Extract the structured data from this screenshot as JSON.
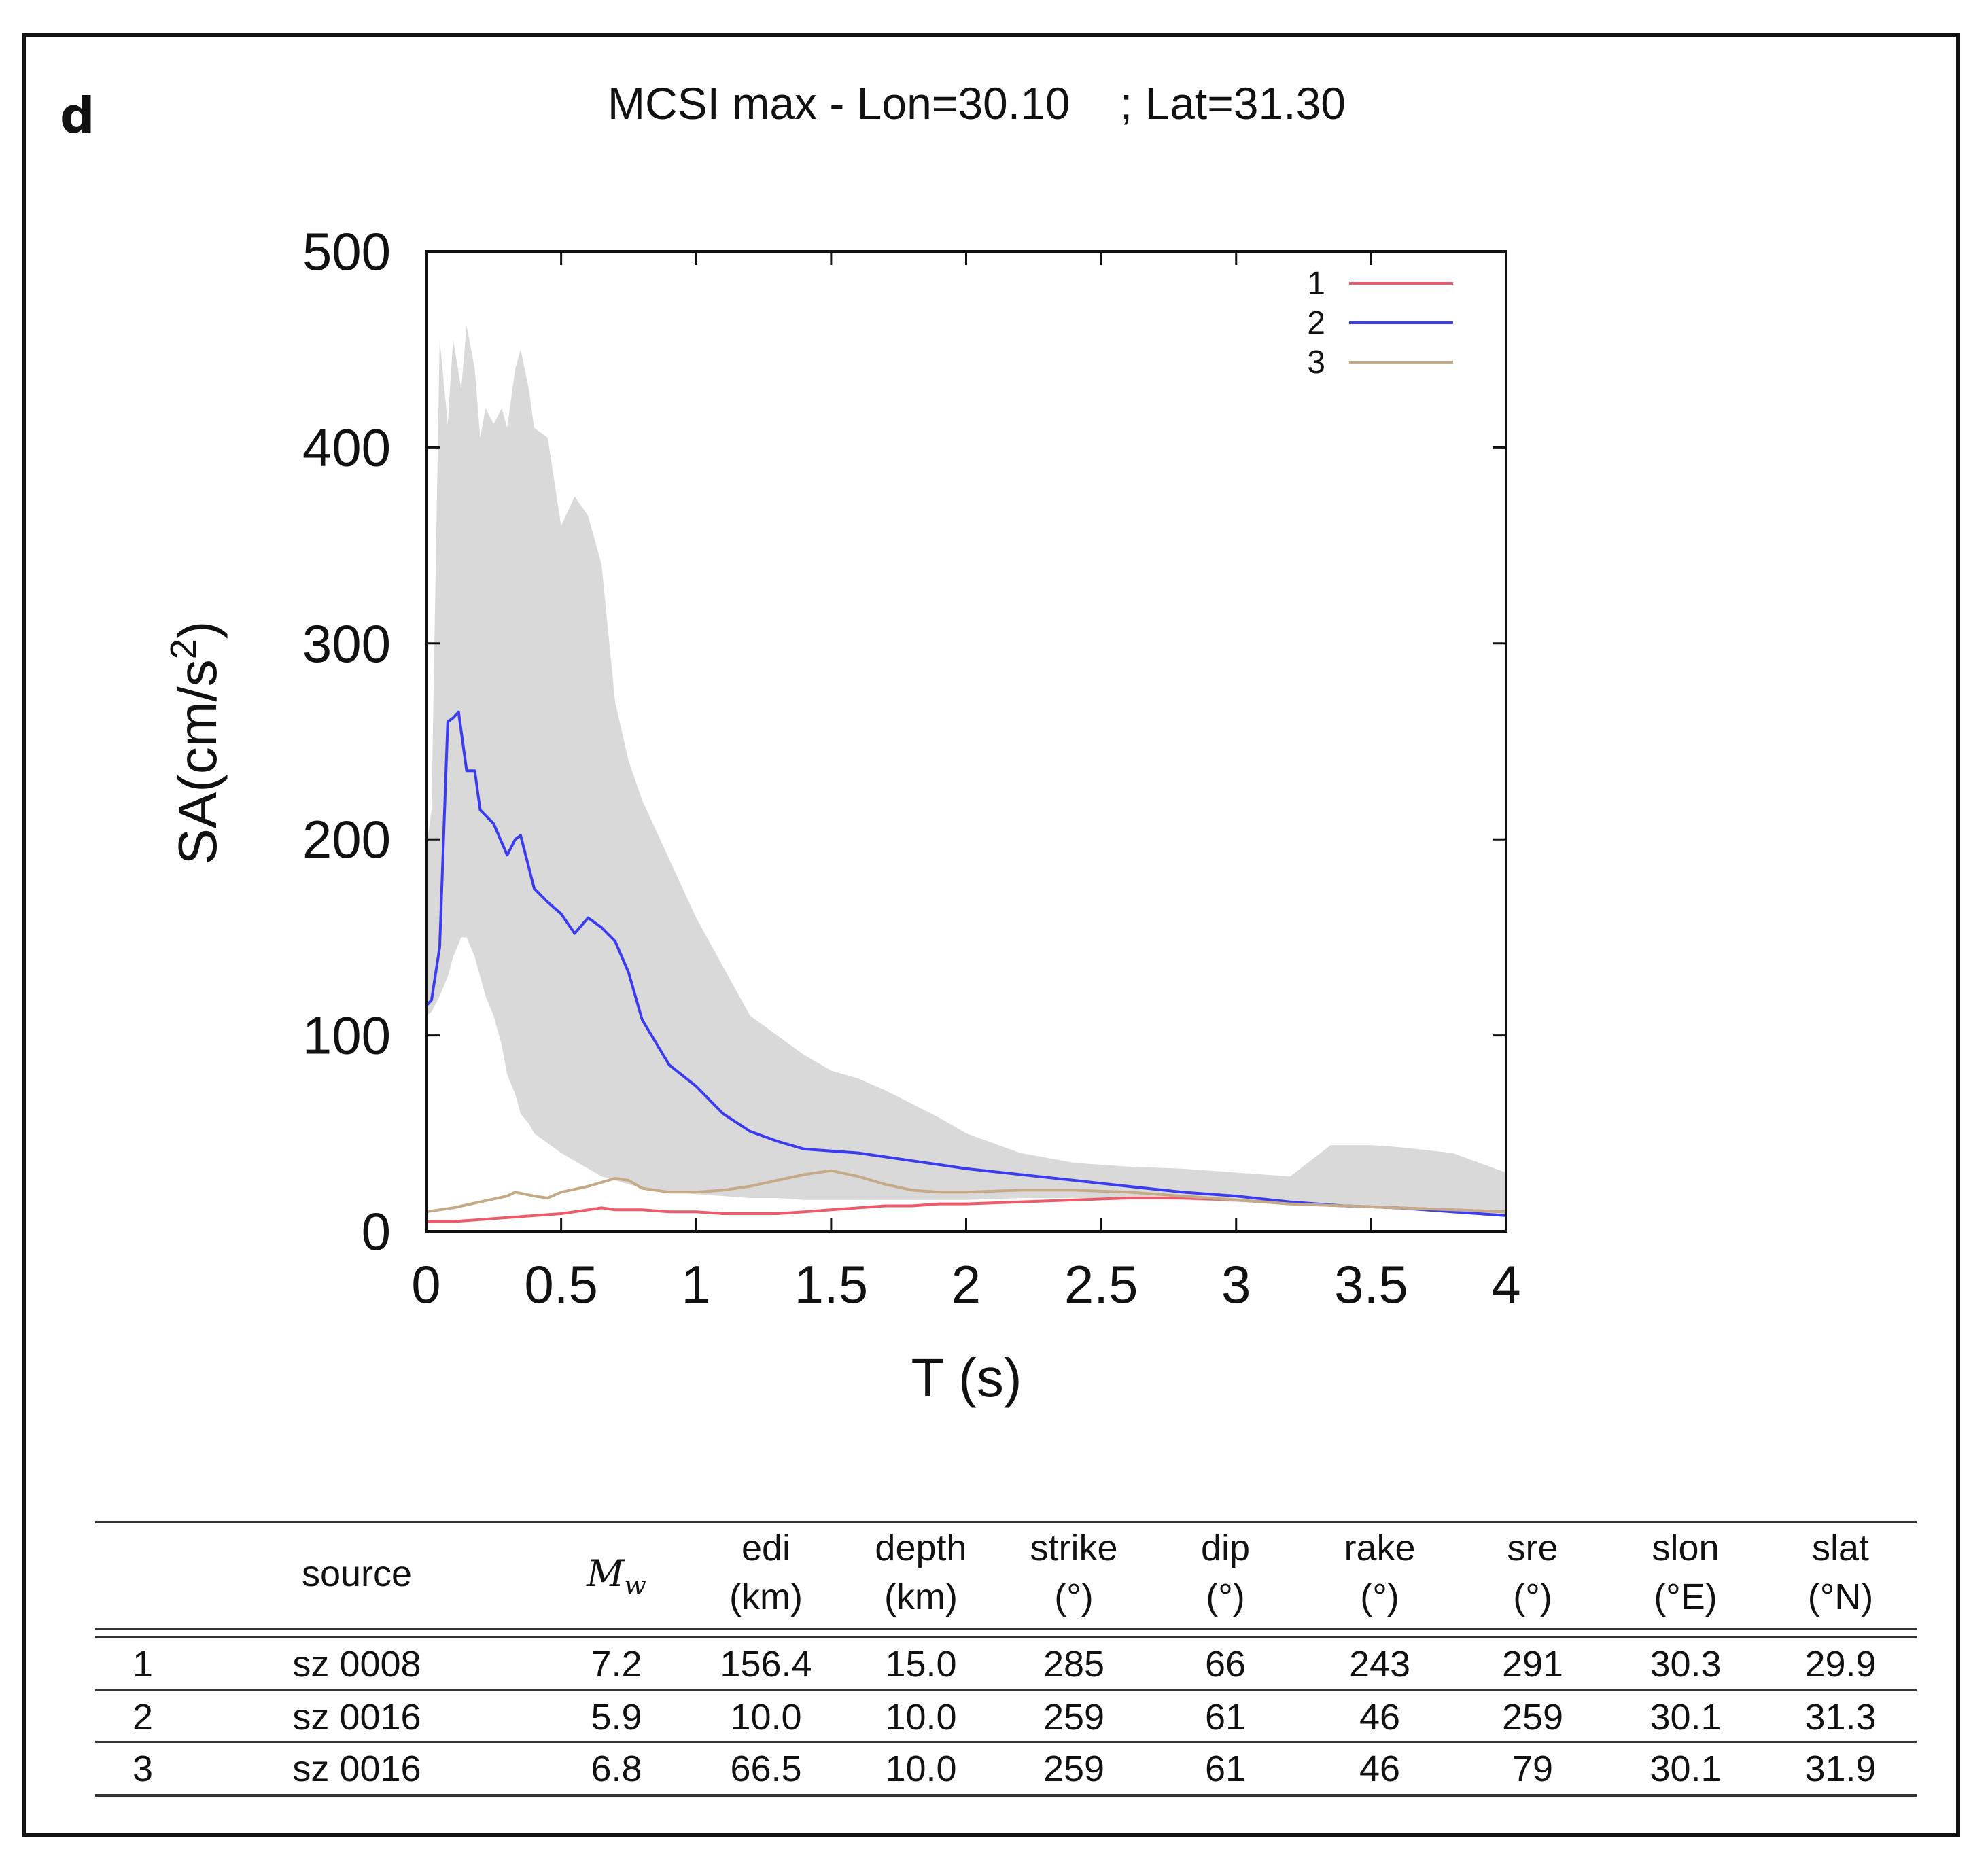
{
  "panel_letter": "d",
  "chart_data": {
    "type": "line",
    "title": "MCSI max - Lon=30.10    ; Lat=31.30",
    "xlabel": "T (s)",
    "ylabel": "SA(cm/s",
    "ylabel_sup": "2",
    "ylabel_close": ")",
    "xlim": [
      0,
      4
    ],
    "ylim": [
      0,
      500
    ],
    "xticks": [
      0,
      0.5,
      1,
      1.5,
      2,
      2.5,
      3,
      3.5,
      4
    ],
    "xtick_labels": [
      "0",
      "0.5",
      "1",
      "1.5",
      "2",
      "2.5",
      "3",
      "3.5",
      "4"
    ],
    "yticks": [
      0,
      100,
      200,
      300,
      400,
      500
    ],
    "ytick_labels": [
      "0",
      "100",
      "200",
      "300",
      "400",
      "500"
    ],
    "legend_position": "top-right",
    "envelope": {
      "name": "range",
      "color": "#d9d9d9",
      "x": [
        0,
        0.02,
        0.05,
        0.08,
        0.1,
        0.13,
        0.15,
        0.18,
        0.2,
        0.22,
        0.25,
        0.28,
        0.3,
        0.33,
        0.35,
        0.38,
        0.4,
        0.45,
        0.5,
        0.55,
        0.6,
        0.65,
        0.7,
        0.75,
        0.8,
        0.9,
        1.0,
        1.1,
        1.2,
        1.3,
        1.4,
        1.5,
        1.6,
        1.7,
        1.8,
        1.9,
        2.0,
        2.2,
        2.4,
        2.6,
        2.8,
        3.0,
        3.2,
        3.35,
        3.5,
        3.6,
        3.8,
        3.9,
        4.0
      ],
      "upper": [
        195,
        215,
        455,
        412,
        455,
        430,
        462,
        440,
        405,
        420,
        412,
        420,
        410,
        440,
        450,
        430,
        410,
        405,
        360,
        375,
        365,
        340,
        270,
        240,
        220,
        190,
        160,
        135,
        110,
        100,
        90,
        82,
        78,
        72,
        65,
        58,
        50,
        40,
        35,
        33,
        32,
        30,
        28,
        44,
        44,
        43,
        40,
        35,
        30
      ],
      "lower": [
        110,
        112,
        120,
        130,
        140,
        150,
        150,
        140,
        130,
        120,
        110,
        95,
        80,
        70,
        60,
        55,
        50,
        45,
        40,
        36,
        32,
        28,
        26,
        24,
        22,
        20,
        19,
        18,
        17,
        17,
        16,
        16,
        16,
        16,
        16,
        16,
        16,
        17,
        17,
        17,
        16,
        15,
        14,
        13,
        12,
        11,
        10,
        9,
        9
      ]
    },
    "series": [
      {
        "name": "1",
        "color": "#ee5a6a",
        "x": [
          0,
          0.1,
          0.2,
          0.3,
          0.4,
          0.5,
          0.6,
          0.65,
          0.7,
          0.8,
          0.9,
          1.0,
          1.1,
          1.2,
          1.3,
          1.4,
          1.5,
          1.6,
          1.7,
          1.8,
          1.9,
          2.0,
          2.2,
          2.4,
          2.6,
          2.8,
          3.0,
          3.2,
          3.4,
          3.6,
          3.8,
          4.0
        ],
        "values": [
          5,
          5,
          6,
          7,
          8,
          9,
          11,
          12,
          11,
          11,
          10,
          10,
          9,
          9,
          9,
          10,
          11,
          12,
          13,
          13,
          14,
          14,
          15,
          16,
          17,
          17,
          16,
          14,
          13,
          12,
          11,
          10
        ]
      },
      {
        "name": "2",
        "color": "#3b3bf0",
        "x": [
          0,
          0.02,
          0.05,
          0.08,
          0.1,
          0.12,
          0.15,
          0.18,
          0.2,
          0.25,
          0.3,
          0.33,
          0.35,
          0.4,
          0.45,
          0.5,
          0.55,
          0.6,
          0.65,
          0.7,
          0.75,
          0.8,
          0.9,
          1.0,
          1.1,
          1.2,
          1.3,
          1.4,
          1.5,
          1.6,
          1.7,
          1.8,
          1.9,
          2.0,
          2.2,
          2.4,
          2.6,
          2.8,
          3.0,
          3.2,
          3.4,
          3.6,
          3.8,
          4.0
        ],
        "values": [
          115,
          118,
          145,
          260,
          262,
          265,
          235,
          235,
          215,
          208,
          192,
          200,
          202,
          175,
          168,
          162,
          152,
          160,
          155,
          148,
          132,
          108,
          85,
          74,
          60,
          51,
          46,
          42,
          41,
          40,
          38,
          36,
          34,
          32,
          29,
          26,
          23,
          20,
          18,
          15,
          13,
          12,
          10,
          8
        ]
      },
      {
        "name": "3",
        "color": "#c4aa86",
        "x": [
          0,
          0.1,
          0.2,
          0.3,
          0.33,
          0.4,
          0.45,
          0.5,
          0.6,
          0.7,
          0.75,
          0.8,
          0.9,
          1.0,
          1.1,
          1.2,
          1.3,
          1.4,
          1.5,
          1.6,
          1.7,
          1.8,
          1.9,
          2.0,
          2.2,
          2.4,
          2.6,
          2.8,
          3.0,
          3.2,
          3.4,
          3.6,
          3.8,
          4.0
        ],
        "values": [
          10,
          12,
          15,
          18,
          20,
          18,
          17,
          20,
          23,
          27,
          26,
          22,
          20,
          20,
          21,
          23,
          26,
          29,
          31,
          28,
          24,
          21,
          20,
          20,
          21,
          21,
          20,
          18,
          16,
          14,
          13,
          12,
          11,
          10
        ]
      }
    ]
  },
  "table": {
    "headers": [
      {
        "line1": "",
        "line2": ""
      },
      {
        "line1": "source",
        "line2": ""
      },
      {
        "line1": "M",
        "sub": "w",
        "line2": ""
      },
      {
        "line1": "edi",
        "line2": "(km)"
      },
      {
        "line1": "depth",
        "line2": "(km)"
      },
      {
        "line1": "strike",
        "line2": "(°)"
      },
      {
        "line1": "dip",
        "line2": "(°)"
      },
      {
        "line1": "rake",
        "line2": "(°)"
      },
      {
        "line1": "sre",
        "line2": "(°)"
      },
      {
        "line1": "slon",
        "line2": "(°E)"
      },
      {
        "line1": "slat",
        "line2": "(°N)"
      }
    ],
    "rows": [
      [
        "1",
        "sz 0008",
        "7.2",
        "156.4",
        "15.0",
        "285",
        "66",
        "243",
        "291",
        "30.3",
        "29.9"
      ],
      [
        "2",
        "sz 0016",
        "5.9",
        "10.0",
        "10.0",
        "259",
        "61",
        "46",
        "259",
        "30.1",
        "31.3"
      ],
      [
        "3",
        "sz 0016",
        "6.8",
        "66.5",
        "10.0",
        "259",
        "61",
        "46",
        "79",
        "30.1",
        "31.9"
      ]
    ]
  }
}
